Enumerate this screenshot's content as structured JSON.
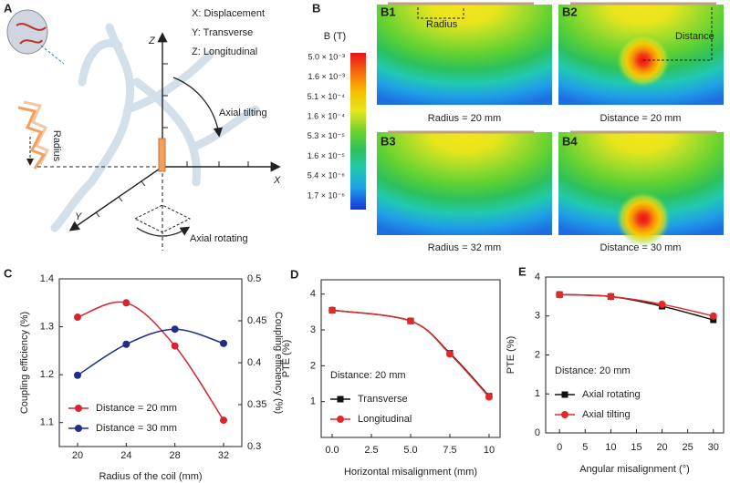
{
  "panel_labels": [
    "A",
    "B"
  ],
  "diagram": {
    "axis_legend": [
      "X: Displacement",
      "Y: Transverse",
      "Z: Longitudinal"
    ],
    "axes": {
      "z": "Z",
      "x": "X",
      "y": "Y"
    },
    "annotations": {
      "tilting": "Axial tilting",
      "rotating": "Axial rotating",
      "radius": "Radius"
    }
  },
  "field_maps": {
    "colorbar_title": "B (T)",
    "colorbar_labels": [
      "5.0 × 10⁻³",
      "1.6 × 10⁻³",
      "5.1 × 10⁻⁴",
      "1.6 × 10⁻⁴",
      "5.3 × 10⁻⁵",
      "1.6 × 10⁻⁵",
      "5.4 × 10⁻⁶",
      "1.7 × 10⁻⁶"
    ],
    "maps": [
      {
        "label": "B1",
        "caption": "Radius = 20 mm",
        "annotation": "Radius"
      },
      {
        "label": "B2",
        "caption": "Distance = 20 mm",
        "annotation": "Distance"
      },
      {
        "label": "B3",
        "caption": "Radius = 32 mm"
      },
      {
        "label": "B4",
        "caption": "Distance = 30 mm"
      }
    ]
  },
  "chart_data": [
    {
      "type": "line",
      "panel": "C",
      "x": [
        20,
        24,
        28,
        32
      ],
      "xlim": [
        18.5,
        33.5
      ],
      "xticks": [
        20,
        24,
        28,
        32
      ],
      "xlabel": "Radius of the coil (mm)",
      "ylabel": "Coupling efficiency (%)",
      "y2label": "Coupling efficiency (%)",
      "ylim": [
        1.05,
        1.4
      ],
      "yticks": [
        1.1,
        1.2,
        1.3,
        1.4
      ],
      "y2lim": [
        0.3,
        0.5
      ],
      "y2ticks": [
        0.3,
        0.35,
        0.4,
        0.45,
        0.5
      ],
      "ylabel_color": "#d62430",
      "y2label_color": "#1f2d8a",
      "legend": "lower left",
      "series": [
        {
          "name": "Distance = 20 mm",
          "color": "#d62430",
          "marker": "circle",
          "values": [
            1.32,
            1.35,
            1.26,
            1.105
          ]
        },
        {
          "name": "Distance = 30 mm",
          "color": "#1f2d8a",
          "marker": "circle",
          "axis": "y2",
          "values": [
            0.385,
            0.422,
            0.44,
            0.423
          ]
        }
      ]
    },
    {
      "type": "line",
      "panel": "D",
      "x": [
        0,
        5,
        7.5,
        10
      ],
      "xlim": [
        -0.7,
        10.7
      ],
      "xticks": [
        {
          "value": 0,
          "label": "0.0"
        },
        2.5,
        {
          "value": 5,
          "label": "5.0"
        },
        7.5,
        10
      ],
      "xlabel": "Horizontal misalignment (mm)",
      "ylabel": "PTE (%)",
      "ylim": [
        0,
        4.4
      ],
      "yticks": [
        1,
        2,
        3,
        4
      ],
      "annotation": "Distance: 20 mm",
      "legend": "lower left",
      "series": [
        {
          "name": "Transverse",
          "color": "#111111",
          "marker": "square",
          "values": [
            3.55,
            3.25,
            2.35,
            1.15
          ]
        },
        {
          "name": "Longitudinal",
          "color": "#e02a2a",
          "marker": "circle",
          "values": [
            3.55,
            3.25,
            2.33,
            1.13
          ]
        }
      ]
    },
    {
      "type": "line",
      "panel": "E",
      "x": [
        0,
        10,
        20,
        30
      ],
      "xlim": [
        -2.7,
        32
      ],
      "xticks": [
        0,
        5,
        10,
        15,
        20,
        25,
        30
      ],
      "xlabel": "Angular misalignment (°)",
      "ylabel": "PTE (%)",
      "ylim": [
        0,
        4
      ],
      "yticks": [
        0,
        1,
        2,
        3,
        4
      ],
      "annotation": "Distance: 20 mm",
      "legend": "lower left",
      "series": [
        {
          "name": "Axial rotating",
          "color": "#111111",
          "marker": "square",
          "values": [
            3.55,
            3.5,
            3.25,
            2.9
          ]
        },
        {
          "name": "Axial tilting",
          "color": "#e02a2a",
          "marker": "circle",
          "values": [
            3.55,
            3.5,
            3.3,
            3.0
          ]
        }
      ]
    }
  ]
}
